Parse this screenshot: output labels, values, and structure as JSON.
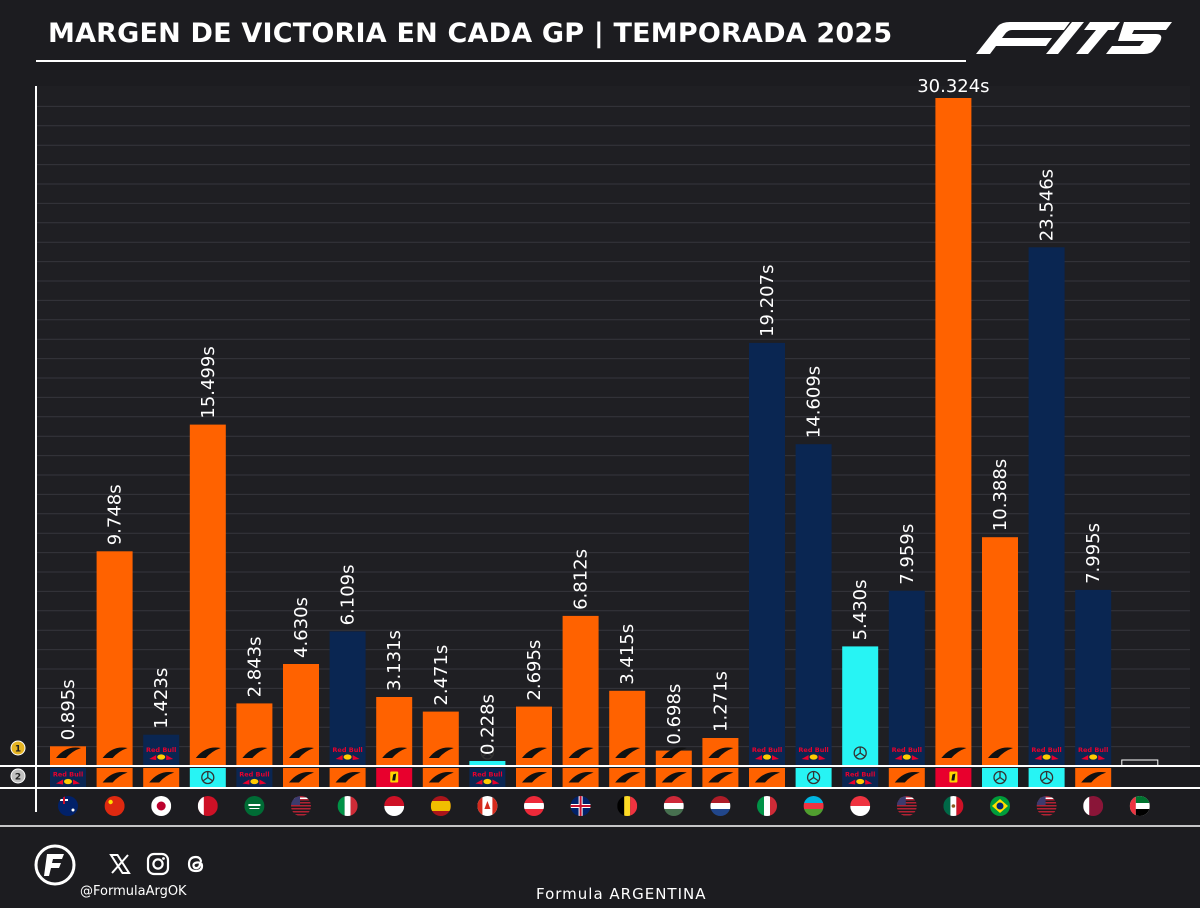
{
  "title": "MARGEN DE VICTORIA EN CADA GP | TEMPORADA 2025",
  "branding": {
    "logo": "f1-75-logo",
    "social_handle": "@FormulaArgOK",
    "footer_brand": "Formula ARGENTINA",
    "social_icons": [
      "x-icon",
      "instagram-icon",
      "threads-icon"
    ]
  },
  "colors": {
    "mclaren": "#ff6200",
    "redbull": "#0a2652",
    "mercedes": "#27f4f4",
    "ferrari": "#e8002d",
    "background": "#1c1c20"
  },
  "chart_data": {
    "type": "bar",
    "ylim": [
      0,
      31
    ],
    "grid": true,
    "rows": [
      "1",
      "2"
    ],
    "x": [
      "australia-flag",
      "china-flag",
      "japan-flag",
      "bahrain-flag",
      "saudi-arabia-flag",
      "usa-flag",
      "italy-flag",
      "monaco-flag",
      "spain-flag",
      "canada-flag",
      "austria-flag",
      "uk-flag",
      "belgium-flag",
      "hungary-flag",
      "netherlands-flag",
      "italy-flag",
      "azerbaijan-flag",
      "singapore-flag",
      "usa-flag",
      "mexico-flag",
      "brazil-flag",
      "usa-flag",
      "qatar-flag",
      "abu-dhabi-flag"
    ],
    "labels": [
      "0.895s",
      "9.748s",
      "1.423s",
      "15.499s",
      "2.843s",
      "4.630s",
      "6.109s",
      "3.131s",
      "2.471s",
      "0.228s",
      "2.695s",
      "6.812s",
      "3.415s",
      "0.698s",
      "1.271s",
      "19.207s",
      "14.609s",
      "5.430s",
      "7.959s",
      "30.324s",
      "10.388s",
      "23.546s",
      "7.995s",
      ""
    ],
    "values": [
      0.895,
      9.748,
      1.423,
      15.499,
      2.843,
      4.63,
      6.109,
      3.131,
      2.471,
      0.228,
      2.695,
      6.812,
      3.415,
      0.698,
      1.271,
      19.207,
      14.609,
      5.43,
      7.959,
      30.324,
      10.388,
      23.546,
      7.995,
      null
    ],
    "winner_team": [
      "mclaren",
      "mclaren",
      "redbull",
      "mclaren",
      "mclaren",
      "mclaren",
      "redbull",
      "mclaren",
      "mclaren",
      "mercedes",
      "mclaren",
      "mclaren",
      "mclaren",
      "mclaren",
      "mclaren",
      "redbull",
      "redbull",
      "mercedes",
      "redbull",
      "mclaren",
      "mclaren",
      "redbull",
      "redbull",
      null
    ],
    "second_team": [
      "redbull",
      "mclaren",
      "mclaren",
      "mercedes",
      "redbull",
      "mclaren",
      "mclaren",
      "ferrari",
      "mclaren",
      "redbull",
      "mclaren",
      "mclaren",
      "mclaren",
      "mclaren",
      "mclaren",
      "mclaren",
      "mercedes",
      "redbull",
      "mclaren",
      "ferrari",
      "mercedes",
      "mercedes",
      "mclaren",
      null
    ]
  }
}
